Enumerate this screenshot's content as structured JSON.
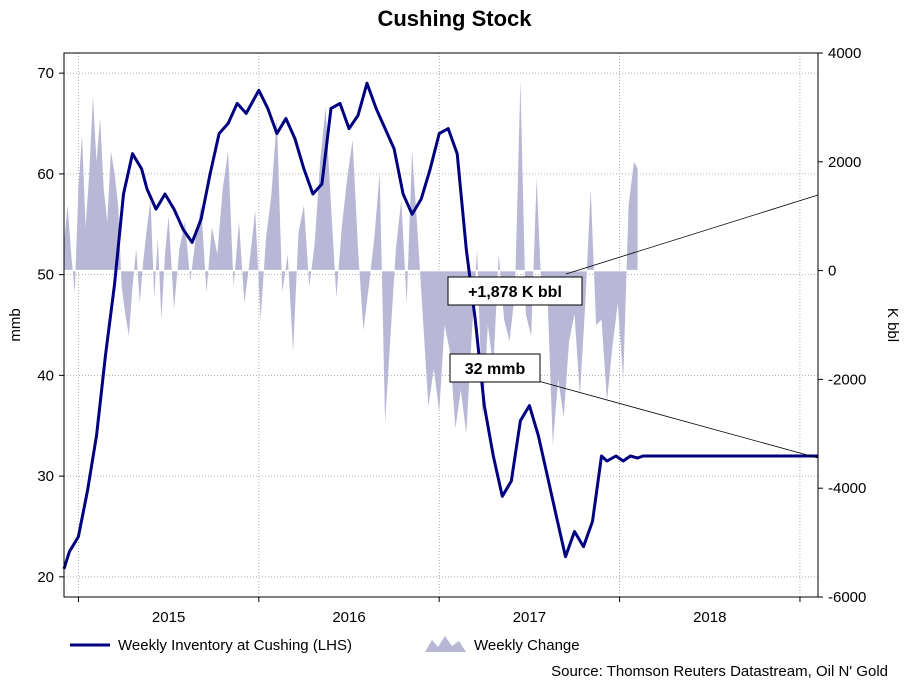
{
  "chart_data": {
    "type": "line",
    "title": "Cushing Stock",
    "ylabel_left": "mmb",
    "ylabel_right": "K bbl",
    "ylim_left": [
      18,
      72
    ],
    "ylim_right": [
      -6000,
      4000
    ],
    "yticks_left": [
      "20",
      "30",
      "40",
      "50",
      "60",
      "70"
    ],
    "yticks_right": [
      "-6000",
      "-4000",
      "-2000",
      "0",
      "2000",
      "4000"
    ],
    "xlim": [
      2014.42,
      2018.6
    ],
    "xticks": [
      {
        "label": "2015",
        "pos": 2015.0
      },
      {
        "label": "2016",
        "pos": 2016.0
      },
      {
        "label": "2017",
        "pos": 2017.0
      },
      {
        "label": "2018",
        "pos": 2018.0
      }
    ],
    "grid": true,
    "series": [
      {
        "name": "Weekly Inventory at Cushing (LHS)",
        "axis": "left",
        "color": "#000080",
        "x": [
          2014.42,
          2014.45,
          2014.5,
          2014.55,
          2014.6,
          2014.65,
          2014.7,
          2014.75,
          2014.8,
          2014.85,
          2014.88,
          2014.93,
          2014.98,
          2015.03,
          2015.08,
          2015.13,
          2015.18,
          2015.23,
          2015.28,
          2015.33,
          2015.38,
          2015.43,
          2015.5,
          2015.55,
          2015.6,
          2015.65,
          2015.7,
          2015.75,
          2015.8,
          2015.85,
          2015.9,
          2015.95,
          2016.0,
          2016.05,
          2016.1,
          2016.15,
          2016.2,
          2016.25,
          2016.3,
          2016.35,
          2016.4,
          2016.45,
          2016.5,
          2016.55,
          2016.6,
          2016.65,
          2016.7,
          2016.75,
          2016.8,
          2016.85,
          2016.9,
          2016.95,
          2017.0,
          2017.05,
          2017.1,
          2017.15,
          2017.2,
          2017.25,
          2017.3,
          2017.35,
          2017.4,
          2017.43,
          2017.48,
          2017.52,
          2017.56,
          2017.6,
          2017.63,
          2017.67,
          2017.7,
          2017.75,
          2017.8,
          2017.85,
          2017.9,
          2017.95,
          2018.0,
          2018.05,
          2018.1,
          2018.15,
          2018.2,
          2018.25,
          2018.3,
          2018.35,
          2018.4,
          2018.45,
          2018.5,
          2018.55,
          2018.6
        ],
        "values": [
          20.8,
          22.5,
          24.0,
          28.5,
          34.0,
          42.0,
          49.0,
          58.0,
          62.0,
          60.5,
          58.5,
          56.5,
          58.0,
          56.5,
          54.5,
          53.2,
          55.5,
          60.0,
          64.0,
          65.0,
          67.0,
          66.0,
          68.3,
          66.5,
          64.0,
          65.5,
          63.5,
          60.5,
          58.0,
          59.0,
          66.5,
          67.0,
          64.5,
          65.8,
          69.0,
          66.5,
          64.5,
          62.5,
          58.0,
          56.0,
          57.5,
          60.5,
          64.0,
          64.5,
          62.0,
          52.5,
          45.5,
          37.0,
          32.0,
          28.0,
          29.5,
          35.5,
          37.0,
          34.0,
          30.0,
          26.0,
          22.0,
          24.5,
          23.0,
          25.5,
          32.0,
          31.5,
          32.0,
          31.5,
          32.0,
          31.8,
          32.0,
          32.0,
          32.0,
          32.0,
          32.0,
          32.0,
          32.0,
          32.0,
          32.0,
          32.0,
          32.0,
          32.0,
          32.0,
          32.0,
          32.0,
          32.0,
          32.0,
          32.0,
          32.0,
          32.0,
          32.0
        ]
      },
      {
        "name": "Weekly Change",
        "axis": "right",
        "color": "#b8b8d6",
        "x": [
          2014.42,
          2014.44,
          2014.46,
          2014.48,
          2014.5,
          2014.52,
          2014.54,
          2014.56,
          2014.58,
          2014.6,
          2014.62,
          2014.64,
          2014.66,
          2014.68,
          2014.7,
          2014.72,
          2014.74,
          2014.76,
          2014.78,
          2014.8,
          2014.82,
          2014.84,
          2014.86,
          2014.88,
          2014.9,
          2014.92,
          2014.94,
          2014.96,
          2014.98,
          2015.0,
          2015.03,
          2015.06,
          2015.09,
          2015.12,
          2015.15,
          2015.18,
          2015.21,
          2015.24,
          2015.27,
          2015.3,
          2015.33,
          2015.36,
          2015.39,
          2015.42,
          2015.45,
          2015.48,
          2015.51,
          2015.54,
          2015.57,
          2015.6,
          2015.63,
          2015.66,
          2015.69,
          2015.72,
          2015.75,
          2015.78,
          2015.81,
          2015.84,
          2015.87,
          2015.9,
          2015.93,
          2015.96,
          2015.99,
          2016.02,
          2016.05,
          2016.08,
          2016.11,
          2016.14,
          2016.17,
          2016.2,
          2016.23,
          2016.26,
          2016.29,
          2016.32,
          2016.35,
          2016.38,
          2016.41,
          2016.44,
          2016.47,
          2016.5,
          2016.53,
          2016.56,
          2016.59,
          2016.62,
          2016.65,
          2016.68,
          2016.71,
          2016.74,
          2016.77,
          2016.8,
          2016.83,
          2016.86,
          2016.89,
          2016.92,
          2016.95,
          2016.98,
          2017.01,
          2017.04,
          2017.07,
          2017.1,
          2017.13,
          2017.16,
          2017.19,
          2017.22,
          2017.25,
          2017.28,
          2017.31,
          2017.34,
          2017.37,
          2017.4,
          2017.43,
          2017.46,
          2017.49,
          2017.52,
          2017.55,
          2017.58,
          2017.6
        ],
        "values": [
          500,
          1200,
          300,
          -400,
          1500,
          2500,
          800,
          1800,
          3200,
          2000,
          2800,
          1500,
          900,
          2200,
          1800,
          1200,
          -300,
          -800,
          -1200,
          -300,
          400,
          -600,
          200,
          800,
          1300,
          -500,
          600,
          -900,
          300,
          1000,
          -700,
          400,
          900,
          -200,
          600,
          1200,
          -400,
          800,
          300,
          1500,
          2200,
          -300,
          900,
          -600,
          200,
          1100,
          -900,
          600,
          1400,
          2800,
          -400,
          300,
          -1500,
          700,
          1200,
          -300,
          500,
          2000,
          3000,
          1200,
          -500,
          800,
          1700,
          2400,
          400,
          -1100,
          -300,
          600,
          1800,
          -2800,
          -1200,
          400,
          1300,
          -600,
          2200,
          700,
          -900,
          -2500,
          -1800,
          -2600,
          -1000,
          -1500,
          -2900,
          -2200,
          -3000,
          -1200,
          400,
          -2700,
          -1000,
          -1800,
          300,
          -900,
          -1300,
          -400,
          3500,
          -800,
          -1200,
          1700,
          -600,
          -400,
          -3200,
          -2000,
          -2700,
          -1300,
          -800,
          -2300,
          -600,
          1500,
          -1000,
          -900,
          -2400,
          -1400,
          -600,
          -2000,
          1200,
          2000,
          1878
        ]
      }
    ],
    "annotations": [
      {
        "label": "+1,878 K bbl"
      },
      {
        "label": "32 mmb"
      }
    ]
  },
  "legend": {
    "inventory_label": "Weekly Inventory at Cushing (LHS)",
    "change_label": "Weekly Change"
  },
  "source": "Source: Thomson Reuters Datastream, Oil N' Gold",
  "colors": {
    "line": "#000080",
    "area": "#b8b8d6",
    "grid": "#9a9a9a"
  }
}
